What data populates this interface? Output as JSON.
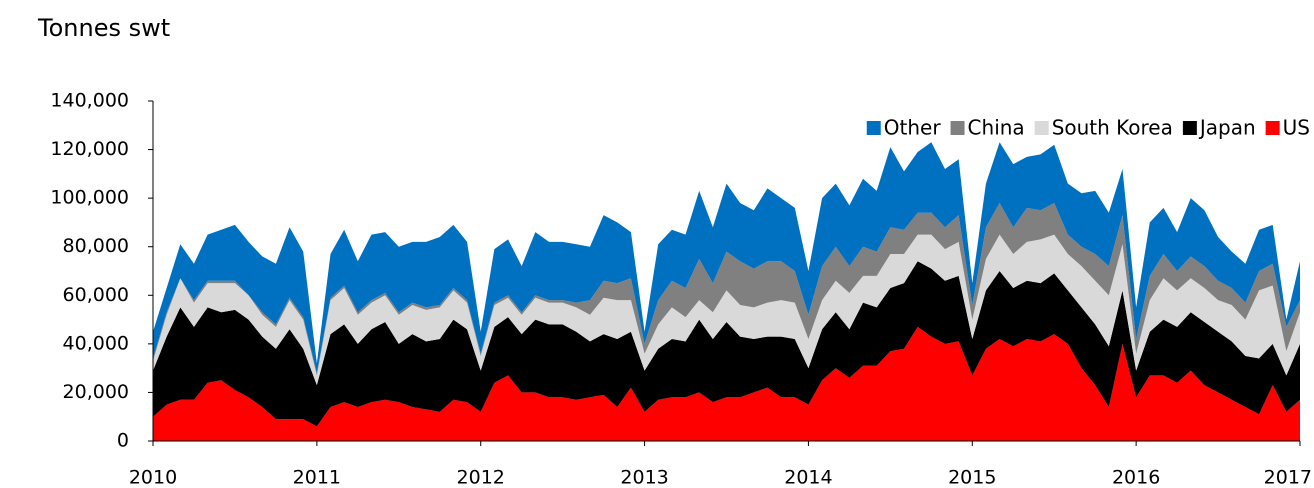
{
  "chart_data": {
    "type": "stacked_area",
    "title": "Tonnes swt",
    "x": [
      2010,
      2010.0833,
      2010.1667,
      2010.25,
      2010.3333,
      2010.4167,
      2010.5,
      2010.5833,
      2010.6667,
      2010.75,
      2010.8333,
      2010.9167,
      2011,
      2011.0833,
      2011.1667,
      2011.25,
      2011.3333,
      2011.4167,
      2011.5,
      2011.5833,
      2011.6667,
      2011.75,
      2011.8333,
      2011.9167,
      2012,
      2012.0833,
      2012.1667,
      2012.25,
      2012.3333,
      2012.4167,
      2012.5,
      2012.5833,
      2012.6667,
      2012.75,
      2012.8333,
      2012.9167,
      2013,
      2013.0833,
      2013.1667,
      2013.25,
      2013.3333,
      2013.4167,
      2013.5,
      2013.5833,
      2013.6667,
      2013.75,
      2013.8333,
      2013.9167,
      2014,
      2014.0833,
      2014.1667,
      2014.25,
      2014.3333,
      2014.4167,
      2014.5,
      2014.5833,
      2014.6667,
      2014.75,
      2014.8333,
      2014.9167,
      2015,
      2015.0833,
      2015.1667,
      2015.25,
      2015.3333,
      2015.4167,
      2015.5,
      2015.5833,
      2015.6667,
      2015.75,
      2015.8333,
      2015.9167,
      2016,
      2016.0833,
      2016.1667,
      2016.25,
      2016.3333,
      2016.4167,
      2016.5,
      2016.5833,
      2016.6667,
      2016.75,
      2016.8333,
      2016.9167,
      2017
    ],
    "series": [
      {
        "name": "Other",
        "color": "#0070c0",
        "values": [
          11000,
          10000,
          14000,
          15000,
          19000,
          21000,
          23000,
          22000,
          23000,
          25000,
          29000,
          27000,
          4000,
          18000,
          23000,
          21000,
          27000,
          25000,
          27000,
          25000,
          27000,
          28000,
          26000,
          24000,
          9000,
          22000,
          23000,
          19000,
          26000,
          24000,
          24000,
          24000,
          22000,
          27000,
          25000,
          19000,
          5000,
          23000,
          21000,
          22000,
          28000,
          23000,
          28000,
          24000,
          24000,
          30000,
          26000,
          26000,
          18000,
          28000,
          26000,
          25000,
          28000,
          25000,
          33000,
          24000,
          25000,
          29000,
          24000,
          23000,
          9000,
          18000,
          25000,
          26000,
          21000,
          23000,
          24000,
          21000,
          22000,
          26000,
          22000,
          19000,
          13000,
          22000,
          19000,
          16000,
          24000,
          23000,
          18000,
          15000,
          16000,
          17000,
          16000,
          3000,
          16000
        ]
      },
      {
        "name": "China",
        "color": "#808080",
        "values": [
          1000,
          1000,
          0,
          1000,
          1000,
          1000,
          1000,
          0,
          1000,
          1000,
          1000,
          1000,
          1000,
          1000,
          1000,
          1000,
          1000,
          1000,
          1000,
          1000,
          1000,
          1000,
          1000,
          1000,
          1000,
          1000,
          1000,
          1000,
          1000,
          1000,
          1000,
          2000,
          6000,
          7000,
          7000,
          9000,
          4000,
          10000,
          11000,
          12000,
          17000,
          12000,
          16000,
          18000,
          16000,
          17000,
          16000,
          13000,
          10000,
          14000,
          14000,
          11000,
          12000,
          10000,
          11000,
          10000,
          9000,
          9000,
          9000,
          11000,
          6000,
          13000,
          13000,
          11000,
          14000,
          12000,
          13000,
          8000,
          8000,
          11000,
          12000,
          12000,
          6000,
          10000,
          10000,
          8000,
          9000,
          9000,
          8000,
          7000,
          7000,
          8000,
          9000,
          10000,
          5000
        ]
      },
      {
        "name": "South Korea",
        "color": "#d9d9d9",
        "values": [
          4000,
          9000,
          12000,
          10000,
          10000,
          12000,
          11000,
          10000,
          9000,
          9000,
          12000,
          12000,
          4000,
          14000,
          15000,
          12000,
          11000,
          11000,
          12000,
          12000,
          13000,
          13000,
          12000,
          11000,
          6000,
          9000,
          8000,
          8000,
          9000,
          9000,
          9000,
          10000,
          11000,
          15000,
          16000,
          13000,
          7000,
          10000,
          13000,
          10000,
          8000,
          11000,
          13000,
          13000,
          13000,
          14000,
          15000,
          15000,
          12000,
          12000,
          13000,
          15000,
          11000,
          13000,
          14000,
          12000,
          11000,
          14000,
          13000,
          14000,
          8000,
          13000,
          15000,
          14000,
          16000,
          18000,
          16000,
          15000,
          17000,
          18000,
          21000,
          19000,
          7000,
          13000,
          17000,
          15000,
          14000,
          14000,
          13000,
          15000,
          15000,
          28000,
          24000,
          10000,
          13000
        ]
      },
      {
        "name": "Japan",
        "color": "#000000",
        "values": [
          19000,
          28000,
          38000,
          30000,
          31000,
          28000,
          33000,
          32000,
          29000,
          29000,
          37000,
          29000,
          17000,
          30000,
          32000,
          26000,
          30000,
          32000,
          24000,
          30000,
          28000,
          30000,
          33000,
          30000,
          17000,
          23000,
          24000,
          24000,
          30000,
          30000,
          30000,
          28000,
          23000,
          25000,
          28000,
          23000,
          17000,
          21000,
          24000,
          23000,
          30000,
          26000,
          31000,
          25000,
          22000,
          21000,
          25000,
          24000,
          15000,
          21000,
          23000,
          20000,
          26000,
          24000,
          26000,
          27000,
          27000,
          28000,
          26000,
          27000,
          15000,
          24000,
          28000,
          24000,
          24000,
          24000,
          25000,
          22000,
          25000,
          25000,
          25000,
          22000,
          11000,
          18000,
          23000,
          23000,
          24000,
          26000,
          25000,
          24000,
          21000,
          23000,
          17000,
          15000,
          23000
        ]
      },
      {
        "name": "US",
        "color": "#ff0000",
        "values": [
          10000,
          15000,
          17000,
          17000,
          24000,
          25000,
          21000,
          18000,
          14000,
          9000,
          9000,
          9000,
          6000,
          14000,
          16000,
          14000,
          16000,
          17000,
          16000,
          14000,
          13000,
          12000,
          17000,
          16000,
          12000,
          24000,
          27000,
          20000,
          20000,
          18000,
          18000,
          17000,
          18000,
          19000,
          14000,
          22000,
          12000,
          17000,
          18000,
          18000,
          20000,
          16000,
          18000,
          18000,
          20000,
          22000,
          18000,
          18000,
          15000,
          25000,
          30000,
          26000,
          31000,
          31000,
          37000,
          38000,
          47000,
          43000,
          40000,
          41000,
          27000,
          38000,
          42000,
          39000,
          42000,
          41000,
          44000,
          40000,
          30000,
          23000,
          14000,
          40000,
          18000,
          27000,
          27000,
          24000,
          29000,
          23000,
          20000,
          17000,
          14000,
          11000,
          23000,
          12000,
          17000
        ]
      }
    ],
    "xlim": [
      2010,
      2017
    ],
    "xticks": [
      2010,
      2011,
      2012,
      2013,
      2014,
      2015,
      2016,
      2017
    ],
    "ylim": [
      0,
      140000
    ],
    "yticks": [
      0,
      {
        "value": 20000,
        "label": "20,000"
      },
      {
        "value": 40000,
        "label": "40,000"
      },
      {
        "value": 60000,
        "label": "60,000"
      },
      {
        "value": 80000,
        "label": "80,000"
      },
      {
        "value": 100000,
        "label": "100,000"
      },
      {
        "value": 120000,
        "label": "120,000"
      },
      {
        "value": 140000,
        "label": "140,000"
      }
    ],
    "legend": "top-right",
    "grid": false
  }
}
